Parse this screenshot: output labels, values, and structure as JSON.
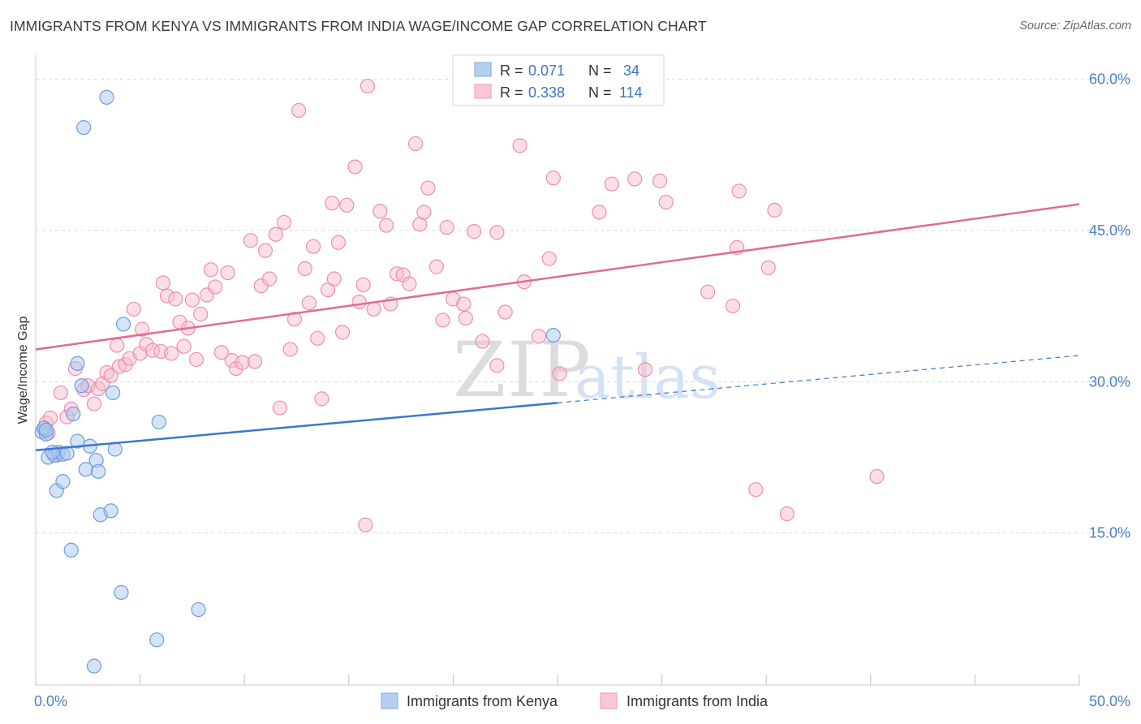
{
  "title": "IMMIGRANTS FROM KENYA VS IMMIGRANTS FROM INDIA WAGE/INCOME GAP CORRELATION CHART",
  "source": "Source: ZipAtlas.com",
  "watermark": {
    "zip": "ZIP",
    "atlas": "atlas"
  },
  "colors": {
    "kenya_fill": "#a9c7ef",
    "kenya_stroke": "#6b9de0",
    "kenya_line": "#3a78d0",
    "india_fill": "#f7bdd0",
    "india_stroke": "#ee8eae",
    "india_line": "#e26a95",
    "grid": "#d9d9d9",
    "axis_text": "#4a7fc4"
  },
  "chart_data": {
    "type": "scatter",
    "ylabel": "Wage/Income Gap",
    "xlim": [
      0,
      50
    ],
    "ylim": [
      0,
      60
    ],
    "x_ticks": [
      0,
      5,
      10,
      15,
      20,
      25,
      30,
      35,
      40,
      45,
      50
    ],
    "x_tick_labels": [
      {
        "value": 0,
        "label": "0.0%"
      },
      {
        "value": 50,
        "label": "50.0%"
      }
    ],
    "y_ticks": [
      {
        "value": 15,
        "label": "15.0%"
      },
      {
        "value": 30,
        "label": "30.0%"
      },
      {
        "value": 45,
        "label": "45.0%"
      },
      {
        "value": 60,
        "label": "60.0%"
      }
    ],
    "legend_top": [
      {
        "r_label": "R =",
        "r_value": "0.071",
        "n_label": "N =",
        "n_value": "34"
      },
      {
        "r_label": "R =",
        "r_value": "0.338",
        "n_label": "N =",
        "n_value": "114"
      }
    ],
    "series": [
      {
        "name": "Immigrants from Kenya",
        "trend": {
          "x0": 0,
          "y0": 23.2,
          "x1": 25,
          "y1": 27.9,
          "dash_x1": 50,
          "dash_y1": 32.6
        },
        "points": [
          [
            0.3,
            25.0
          ],
          [
            0.5,
            24.8
          ],
          [
            0.4,
            25.4
          ],
          [
            0.6,
            22.5
          ],
          [
            0.9,
            22.7
          ],
          [
            1.1,
            23.0
          ],
          [
            1.3,
            22.8
          ],
          [
            1.0,
            19.2
          ],
          [
            1.3,
            20.1
          ],
          [
            1.8,
            26.8
          ],
          [
            2.0,
            24.1
          ],
          [
            2.0,
            31.8
          ],
          [
            2.2,
            29.6
          ],
          [
            2.4,
            21.3
          ],
          [
            2.6,
            23.6
          ],
          [
            2.9,
            22.2
          ],
          [
            3.0,
            21.1
          ],
          [
            3.1,
            16.8
          ],
          [
            3.6,
            17.2
          ],
          [
            3.7,
            28.9
          ],
          [
            3.8,
            23.3
          ],
          [
            4.2,
            35.7
          ],
          [
            4.1,
            9.1
          ],
          [
            1.7,
            13.3
          ],
          [
            2.3,
            55.2
          ],
          [
            3.4,
            58.2
          ],
          [
            5.9,
            26.0
          ],
          [
            5.8,
            4.4
          ],
          [
            7.8,
            7.4
          ],
          [
            2.8,
            1.8
          ],
          [
            24.8,
            34.6
          ],
          [
            0.8,
            23.0
          ],
          [
            0.5,
            25.2
          ],
          [
            1.5,
            22.9
          ]
        ]
      },
      {
        "name": "Immigrants from India",
        "trend": {
          "x0": 0,
          "y0": 33.2,
          "x1": 50,
          "y1": 47.6
        },
        "points": [
          [
            0.4,
            25.4
          ],
          [
            0.5,
            25.9
          ],
          [
            0.6,
            24.9
          ],
          [
            0.7,
            26.4
          ],
          [
            1.0,
            22.7
          ],
          [
            1.2,
            28.9
          ],
          [
            1.5,
            26.5
          ],
          [
            1.7,
            27.3
          ],
          [
            1.9,
            31.3
          ],
          [
            2.3,
            29.2
          ],
          [
            2.5,
            29.6
          ],
          [
            2.8,
            27.8
          ],
          [
            3.0,
            29.3
          ],
          [
            3.2,
            29.8
          ],
          [
            3.4,
            30.9
          ],
          [
            3.6,
            30.6
          ],
          [
            3.9,
            33.6
          ],
          [
            4.0,
            31.5
          ],
          [
            4.3,
            31.7
          ],
          [
            4.5,
            32.3
          ],
          [
            4.7,
            37.2
          ],
          [
            5.0,
            32.8
          ],
          [
            5.1,
            35.2
          ],
          [
            5.3,
            33.7
          ],
          [
            5.6,
            33.1
          ],
          [
            6.0,
            33.0
          ],
          [
            6.1,
            39.8
          ],
          [
            6.3,
            38.5
          ],
          [
            6.5,
            32.8
          ],
          [
            6.7,
            38.2
          ],
          [
            6.9,
            35.9
          ],
          [
            7.1,
            33.5
          ],
          [
            7.3,
            35.3
          ],
          [
            7.5,
            38.1
          ],
          [
            7.7,
            32.2
          ],
          [
            7.9,
            36.7
          ],
          [
            8.2,
            38.6
          ],
          [
            8.4,
            41.1
          ],
          [
            8.6,
            39.4
          ],
          [
            8.9,
            32.9
          ],
          [
            9.2,
            40.8
          ],
          [
            9.4,
            32.1
          ],
          [
            9.6,
            31.3
          ],
          [
            9.9,
            31.9
          ],
          [
            10.3,
            44.0
          ],
          [
            10.5,
            32.0
          ],
          [
            10.8,
            39.5
          ],
          [
            11.0,
            43.0
          ],
          [
            11.2,
            40.2
          ],
          [
            11.5,
            44.6
          ],
          [
            11.7,
            27.4
          ],
          [
            11.9,
            45.8
          ],
          [
            12.2,
            33.2
          ],
          [
            12.4,
            36.2
          ],
          [
            12.6,
            56.9
          ],
          [
            12.9,
            41.2
          ],
          [
            13.1,
            37.8
          ],
          [
            13.3,
            43.4
          ],
          [
            13.5,
            34.3
          ],
          [
            13.7,
            28.3
          ],
          [
            14.0,
            39.1
          ],
          [
            14.2,
            47.7
          ],
          [
            14.3,
            40.2
          ],
          [
            14.5,
            43.8
          ],
          [
            14.7,
            34.9
          ],
          [
            14.9,
            47.5
          ],
          [
            15.3,
            51.3
          ],
          [
            15.5,
            37.9
          ],
          [
            15.7,
            39.6
          ],
          [
            15.9,
            59.3
          ],
          [
            16.2,
            37.2
          ],
          [
            16.5,
            46.9
          ],
          [
            16.8,
            45.5
          ],
          [
            17.0,
            37.7
          ],
          [
            17.3,
            40.7
          ],
          [
            17.6,
            40.6
          ],
          [
            17.9,
            39.7
          ],
          [
            18.2,
            53.6
          ],
          [
            18.4,
            45.6
          ],
          [
            18.6,
            46.8
          ],
          [
            18.8,
            49.2
          ],
          [
            19.2,
            41.4
          ],
          [
            19.5,
            36.1
          ],
          [
            19.7,
            45.3
          ],
          [
            20.0,
            38.2
          ],
          [
            20.5,
            37.7
          ],
          [
            20.6,
            36.3
          ],
          [
            21.0,
            44.9
          ],
          [
            21.4,
            34.0
          ],
          [
            22.1,
            31.6
          ],
          [
            22.1,
            44.8
          ],
          [
            22.5,
            36.9
          ],
          [
            23.2,
            53.4
          ],
          [
            23.4,
            39.9
          ],
          [
            24.1,
            34.5
          ],
          [
            24.6,
            42.2
          ],
          [
            24.8,
            50.2
          ],
          [
            25.1,
            30.8
          ],
          [
            27.0,
            46.8
          ],
          [
            27.6,
            49.6
          ],
          [
            28.7,
            50.1
          ],
          [
            29.2,
            31.2
          ],
          [
            29.9,
            49.9
          ],
          [
            30.2,
            47.8
          ],
          [
            32.2,
            38.9
          ],
          [
            33.4,
            37.5
          ],
          [
            33.6,
            43.3
          ],
          [
            33.7,
            48.9
          ],
          [
            34.5,
            19.3
          ],
          [
            35.1,
            41.3
          ],
          [
            35.4,
            47.0
          ],
          [
            36.0,
            16.9
          ],
          [
            40.3,
            20.6
          ],
          [
            15.8,
            15.8
          ]
        ]
      }
    ]
  },
  "legend_bottom": [
    "Immigrants from Kenya",
    "Immigrants from India"
  ]
}
